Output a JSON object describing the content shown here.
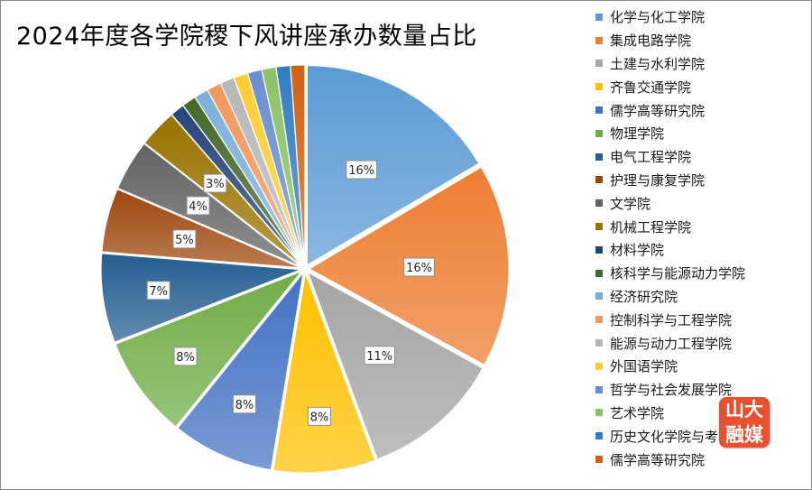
{
  "title": "2024年度各学院稷下风讲座承办数量占比",
  "watermark": {
    "text": "山大融媒",
    "color": "#e8502f"
  },
  "chart_data": {
    "type": "pie",
    "title": "2024年度各学院稷下风讲座承办数量占比",
    "legend_position": "right",
    "start_angle_deg": 0,
    "direction": "clockwise",
    "slices": [
      {
        "name": "化学与化工学院",
        "value": 16,
        "label": "16%",
        "color": "#5b9bd5"
      },
      {
        "name": "集成电路学院",
        "value": 16,
        "label": "16%",
        "color": "#ed7d31"
      },
      {
        "name": "土建与水利学院",
        "value": 11,
        "label": "11%",
        "color": "#a5a5a5"
      },
      {
        "name": "齐鲁交通学院",
        "value": 8,
        "label": "8%",
        "color": "#ffc000"
      },
      {
        "name": "儒学高等研究院",
        "value": 8,
        "label": "8%",
        "color": "#4472c4"
      },
      {
        "name": "物理学院",
        "value": 8,
        "label": "8%",
        "color": "#70ad47"
      },
      {
        "name": "电气工程学院",
        "value": 7,
        "label": "7%",
        "color": "#255e91"
      },
      {
        "name": "护理与康复学院",
        "value": 5,
        "label": "5%",
        "color": "#9e480e"
      },
      {
        "name": "文学院",
        "value": 4,
        "label": "4%",
        "color": "#636363"
      },
      {
        "name": "机械工程学院",
        "value": 3,
        "label": "3%",
        "color": "#997300"
      },
      {
        "name": "材料学院",
        "value": 1.1,
        "label": "",
        "color": "#264478"
      },
      {
        "name": "核科学与能源动力学院",
        "value": 1.1,
        "label": "",
        "color": "#43682b"
      },
      {
        "name": "经济研究院",
        "value": 1.1,
        "label": "",
        "color": "#7cafdd"
      },
      {
        "name": "控制科学与工程学院",
        "value": 1.1,
        "label": "",
        "color": "#f1975a"
      },
      {
        "name": "能源与动力工程学院",
        "value": 1.1,
        "label": "",
        "color": "#b7b7b7"
      },
      {
        "name": "外国语学院",
        "value": 1.1,
        "label": "",
        "color": "#ffcd33"
      },
      {
        "name": "哲学与社会发展学院",
        "value": 1.1,
        "label": "",
        "color": "#698ed0"
      },
      {
        "name": "艺术学院",
        "value": 1.1,
        "label": "",
        "color": "#8cc168"
      },
      {
        "name": "历史文化学院与考古学院",
        "value": 1.1,
        "label": "",
        "color": "#327dc2"
      },
      {
        "name": "儒学高等研究院",
        "value": 1.1,
        "label": "",
        "color": "#d26012"
      }
    ]
  }
}
